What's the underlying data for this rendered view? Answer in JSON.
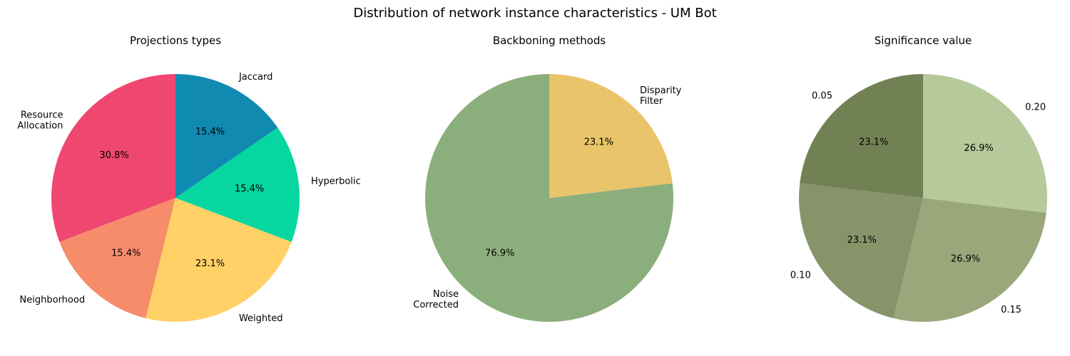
{
  "figure": {
    "title": "Distribution of network instance characteristics - UM Bot"
  },
  "chart_data": [
    {
      "type": "pie",
      "title": "Projections types",
      "start_angle_deg": 90,
      "direction": "counterclockwise",
      "slices": [
        {
          "label": "Resource Allocation",
          "value": 30.8,
          "pct_label": "30.8%",
          "color": "#EF476F"
        },
        {
          "label": "Neighborhood",
          "value": 15.4,
          "pct_label": "15.4%",
          "color": "#F78C6B"
        },
        {
          "label": "Weighted",
          "value": 23.1,
          "pct_label": "23.1%",
          "color": "#FFD166"
        },
        {
          "label": "Hyperbolic",
          "value": 15.4,
          "pct_label": "15.4%",
          "color": "#06D6A0"
        },
        {
          "label": "Jaccard",
          "value": 15.4,
          "pct_label": "15.4%",
          "color": "#118AB2"
        }
      ]
    },
    {
      "type": "pie",
      "title": "Backboning methods",
      "start_angle_deg": 90,
      "direction": "counterclockwise",
      "slices": [
        {
          "label": "Noise Corrected",
          "value": 76.9,
          "pct_label": "76.9%",
          "color": "#8BAF7C"
        },
        {
          "label": "Disparity Filter",
          "value": 23.1,
          "pct_label": "23.1%",
          "color": "#E9C46A"
        }
      ]
    },
    {
      "type": "pie",
      "title": "Significance value",
      "start_angle_deg": 90,
      "direction": "counterclockwise",
      "slices": [
        {
          "label": "0.05",
          "value": 23.1,
          "pct_label": "23.1%",
          "color": "#718154"
        },
        {
          "label": "0.10",
          "value": 23.1,
          "pct_label": "23.1%",
          "color": "#87946A"
        },
        {
          "label": "0.15",
          "value": 26.9,
          "pct_label": "26.9%",
          "color": "#99A77B"
        },
        {
          "label": "0.20",
          "value": 26.9,
          "pct_label": "26.9%",
          "color": "#B6C99A"
        }
      ]
    }
  ]
}
